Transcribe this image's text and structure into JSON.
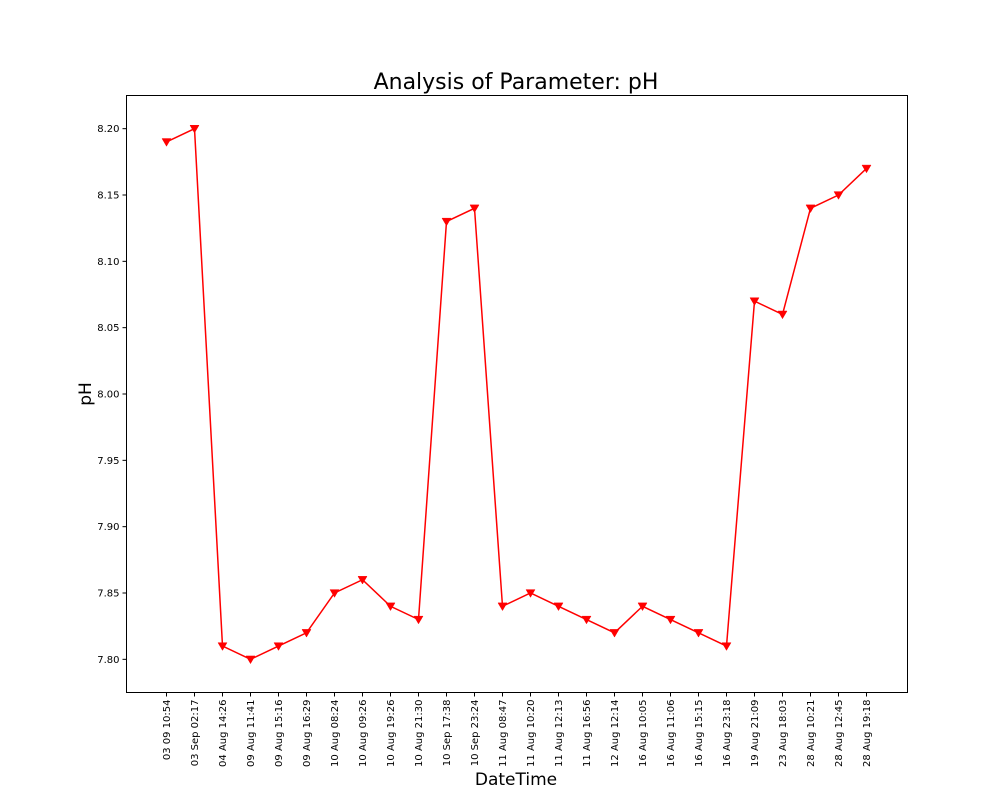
{
  "chart_data": {
    "type": "line",
    "title": "Analysis of Parameter: pH",
    "xlabel": "DateTime",
    "ylabel": "pH",
    "categories": [
      "03 09 10:54",
      "03 Sep 02:17",
      "04 Aug 14:26",
      "09 Aug 11:41",
      "09 Aug 15:16",
      "09 Aug 16:29",
      "10 Aug 08:24",
      "10 Aug 09:26",
      "10 Aug 19:26",
      "10 Aug 21:30",
      "10 Sep 17:38",
      "10 Sep 23:24",
      "11 Aug 08:47",
      "11 Aug 10:20",
      "11 Aug 12:13",
      "11 Aug 16:56",
      "12 Aug 12:14",
      "16 Aug 10:05",
      "16 Aug 11:06",
      "16 Aug 15:15",
      "16 Aug 23:18",
      "19 Aug 21:09",
      "23 Aug 18:03",
      "28 Aug 10:21",
      "28 Aug 12:45",
      "28 Aug 19:18"
    ],
    "series": [
      {
        "values": [
          8.19,
          8.2,
          7.81,
          7.8,
          7.81,
          7.82,
          7.85,
          7.86,
          7.84,
          7.83,
          8.13,
          8.14,
          7.84,
          7.85,
          7.84,
          7.83,
          7.82,
          7.84,
          7.83,
          7.82,
          7.81,
          8.07,
          8.06,
          8.14,
          8.15,
          8.17
        ],
        "color": "#ff0000",
        "marker": "triangle-down"
      }
    ],
    "yticks": [
      "7.80",
      "7.85",
      "7.90",
      "7.95",
      "8.00",
      "8.05",
      "8.10",
      "8.15",
      "8.20"
    ],
    "ylim": [
      7.775,
      8.225
    ],
    "grid": false
  }
}
